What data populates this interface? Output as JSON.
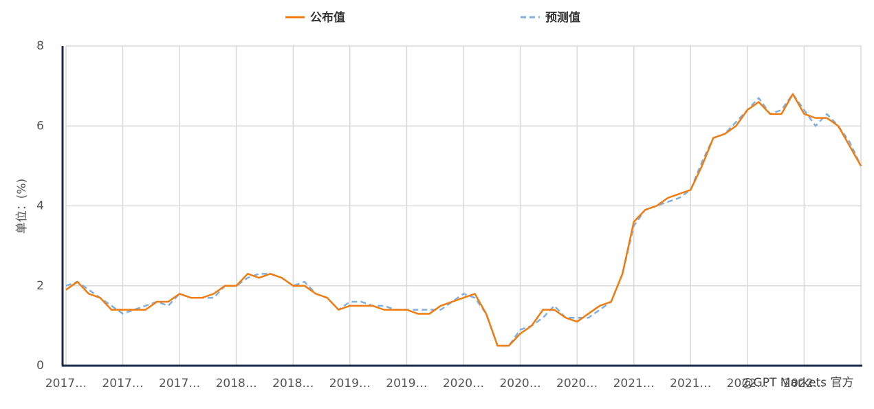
{
  "chart_data": {
    "type": "line",
    "y_label": "单位：(%)",
    "watermark": "@GPT Markets 官方",
    "categories": [
      "2017…",
      null,
      null,
      null,
      null,
      "2017…",
      null,
      null,
      null,
      null,
      "2017…",
      null,
      null,
      null,
      null,
      "2018…",
      null,
      null,
      null,
      null,
      "2018…",
      null,
      null,
      null,
      null,
      "2019…",
      null,
      null,
      null,
      null,
      "2019…",
      null,
      null,
      null,
      null,
      "2020…",
      null,
      null,
      null,
      null,
      "2020…",
      null,
      null,
      null,
      null,
      "2020…",
      null,
      null,
      null,
      null,
      "2021…",
      null,
      null,
      null,
      null,
      "2021…",
      null,
      null,
      null,
      null,
      "2022…",
      null,
      null,
      null,
      null,
      "2022…",
      null,
      null,
      null,
      null,
      null
    ],
    "series": [
      {
        "name": "公布值",
        "color": "#f07c10",
        "dashed": false,
        "values": [
          1.9,
          2.1,
          1.8,
          1.7,
          1.4,
          1.4,
          1.4,
          1.4,
          1.6,
          1.6,
          1.8,
          1.7,
          1.7,
          1.8,
          2.0,
          2.0,
          2.3,
          2.2,
          2.3,
          2.2,
          2.0,
          2.0,
          1.8,
          1.7,
          1.4,
          1.5,
          1.5,
          1.5,
          1.4,
          1.4,
          1.4,
          1.3,
          1.3,
          1.5,
          1.6,
          1.7,
          1.8,
          1.3,
          0.5,
          0.5,
          0.8,
          1.0,
          1.4,
          1.4,
          1.2,
          1.1,
          1.3,
          1.5,
          1.6,
          2.3,
          3.6,
          3.9,
          4.0,
          4.2,
          4.3,
          4.4,
          5.0,
          5.7,
          5.8,
          6.0,
          6.4,
          6.6,
          6.3,
          6.3,
          6.8,
          6.3,
          6.2,
          6.2,
          6.0,
          5.5,
          5.0
        ]
      },
      {
        "name": "预测值",
        "color": "#7fb0e0",
        "dashed": true,
        "values": [
          2.0,
          2.1,
          1.9,
          1.7,
          1.5,
          1.3,
          1.4,
          1.5,
          1.6,
          1.5,
          1.8,
          1.7,
          1.7,
          1.7,
          2.0,
          2.0,
          2.2,
          2.3,
          2.3,
          2.2,
          2.0,
          2.1,
          1.8,
          1.7,
          1.4,
          1.6,
          1.6,
          1.5,
          1.5,
          1.4,
          1.4,
          1.4,
          1.4,
          1.4,
          1.6,
          1.8,
          1.7,
          1.3,
          0.5,
          0.5,
          0.9,
          1.0,
          1.2,
          1.5,
          1.2,
          1.2,
          1.2,
          1.4,
          1.6,
          2.3,
          3.5,
          3.9,
          4.0,
          4.1,
          4.2,
          4.4,
          5.1,
          5.7,
          5.8,
          6.1,
          6.4,
          6.7,
          6.3,
          6.4,
          6.8,
          6.4,
          6.0,
          6.3,
          6.0,
          5.6,
          5.0
        ]
      }
    ],
    "ylim": [
      0,
      8
    ],
    "yticks": [
      0,
      2,
      4,
      6,
      8
    ],
    "grid": true
  }
}
